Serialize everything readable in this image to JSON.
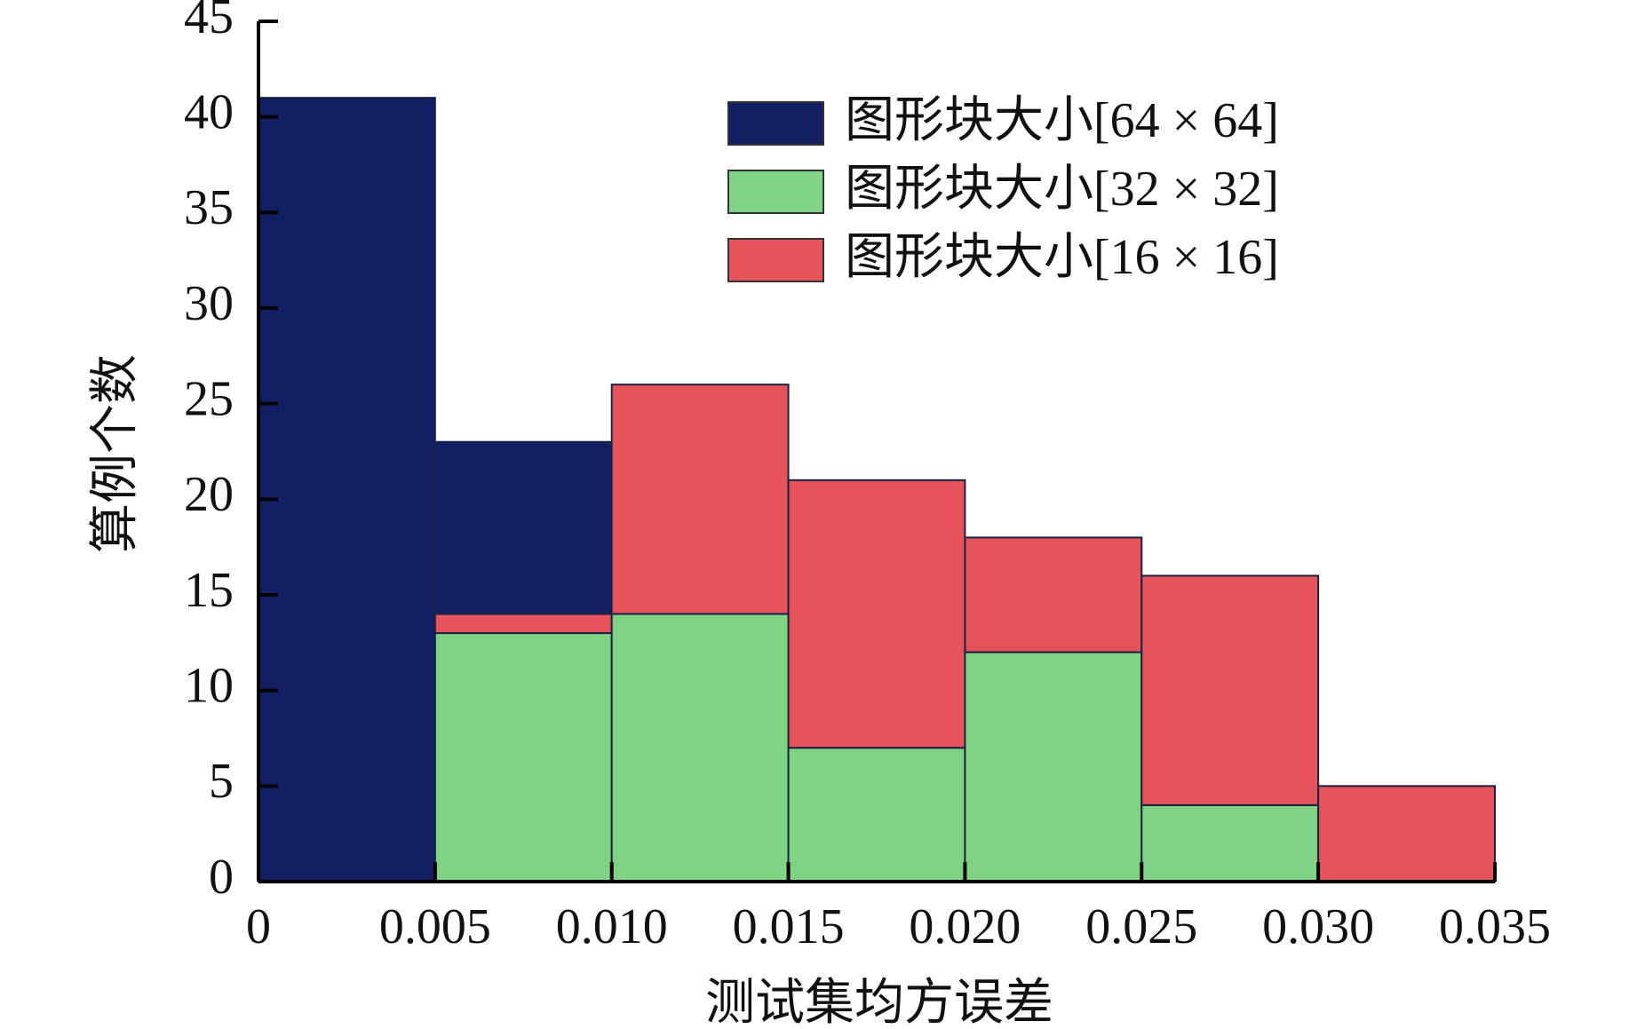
{
  "chart_data": {
    "type": "histogram",
    "xlabel": "测试集均方误差",
    "ylabel": "算例个数",
    "bins": [
      0,
      0.005,
      0.01,
      0.015,
      0.02,
      0.025,
      0.03,
      0.035
    ],
    "series": [
      {
        "name": "图形块大小[64 × 64]",
        "color": "#131f63",
        "values": [
          41,
          9,
          0,
          0,
          0,
          0,
          0
        ]
      },
      {
        "name": "图形块大小[32 × 32]",
        "color": "#80d384",
        "values": [
          0,
          13,
          14,
          7,
          12,
          4,
          0
        ]
      },
      {
        "name": "图形块大小[16 × 16]",
        "color": "#e5535b",
        "values": [
          0,
          1,
          12,
          14,
          6,
          12,
          5
        ]
      }
    ],
    "stacked": true,
    "xlim": [
      0,
      0.035
    ],
    "xticks": [
      0,
      0.005,
      {
        "value": 0.01,
        "label": "0.010"
      },
      0.015,
      {
        "value": 0.02,
        "label": "0.020"
      },
      0.025,
      {
        "value": 0.03,
        "label": "0.030"
      },
      0.035
    ],
    "ylim": [
      0,
      45
    ],
    "yticks": [
      0,
      5,
      10,
      15,
      20,
      25,
      30,
      35,
      40,
      45
    ],
    "legend": "upper right"
  }
}
